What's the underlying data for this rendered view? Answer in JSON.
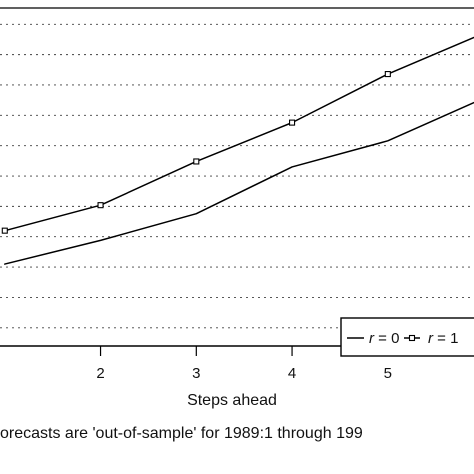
{
  "chart_data": {
    "type": "line",
    "title": "",
    "xlabel": "Steps ahead",
    "ylabel": "",
    "x": [
      1,
      2,
      3,
      4,
      5,
      6
    ],
    "xticks": [
      "2",
      "3",
      "4",
      "5"
    ],
    "series": [
      {
        "name": "r = 0",
        "values": [
          1.35,
          1.74,
          2.18,
          2.95,
          3.38,
          4.08
        ],
        "marker": "none",
        "color": "#000000"
      },
      {
        "name": "r = 1",
        "values": [
          1.9,
          2.32,
          3.04,
          3.68,
          4.48,
          5.15
        ],
        "marker": "square",
        "color": "#000000"
      }
    ],
    "xlim": [
      0.95,
      5.9
    ],
    "ylim": [
      0.0,
      5.7
    ],
    "grid": "horizontal dotted",
    "legend": {
      "placement": "bottom-right",
      "entries": [
        {
          "label": "r = 0",
          "symbol": "r",
          "value": "0",
          "marker": "none"
        },
        {
          "label": "r = 1",
          "symbol": "r",
          "value": "1",
          "marker": "square"
        }
      ]
    },
    "caption": "orecasts are 'out-of-sample' for 1989:1 through 199"
  }
}
